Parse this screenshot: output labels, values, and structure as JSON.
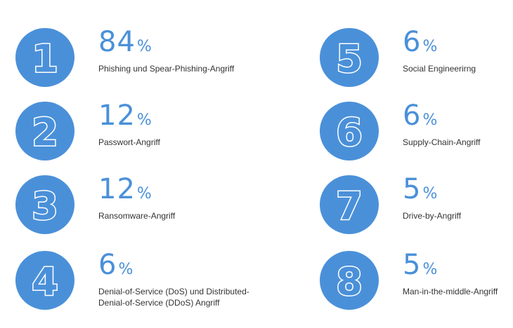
{
  "chart_data": {
    "type": "table",
    "unit": "%",
    "colors": {
      "circle": "#4a90d9",
      "value_text": "#4a90d9",
      "label_text": "#333333",
      "rank_outline": "#ffffff"
    },
    "items": [
      {
        "rank": "1",
        "value": "84",
        "unit": "%",
        "label": "Phishing und Spear-Phishing-Angriff"
      },
      {
        "rank": "2",
        "value": "12",
        "unit": "%",
        "label": "Passwort-Angriff"
      },
      {
        "rank": "3",
        "value": "12",
        "unit": "%",
        "label": "Ransomware-Angriff"
      },
      {
        "rank": "4",
        "value": "6",
        "unit": "%",
        "label": "Denial-of-Service (DoS) und Distributed-Denial-of-Service (DDoS) Angriff"
      },
      {
        "rank": "5",
        "value": "6",
        "unit": "%",
        "label": "Social Engineerirng"
      },
      {
        "rank": "6",
        "value": "6",
        "unit": "%",
        "label": "Supply-Chain-Angriff"
      },
      {
        "rank": "7",
        "value": "5",
        "unit": "%",
        "label": "Drive-by-Angriff"
      },
      {
        "rank": "8",
        "value": "5",
        "unit": "%",
        "label": "Man-in-the-middle-Angriff"
      }
    ]
  }
}
